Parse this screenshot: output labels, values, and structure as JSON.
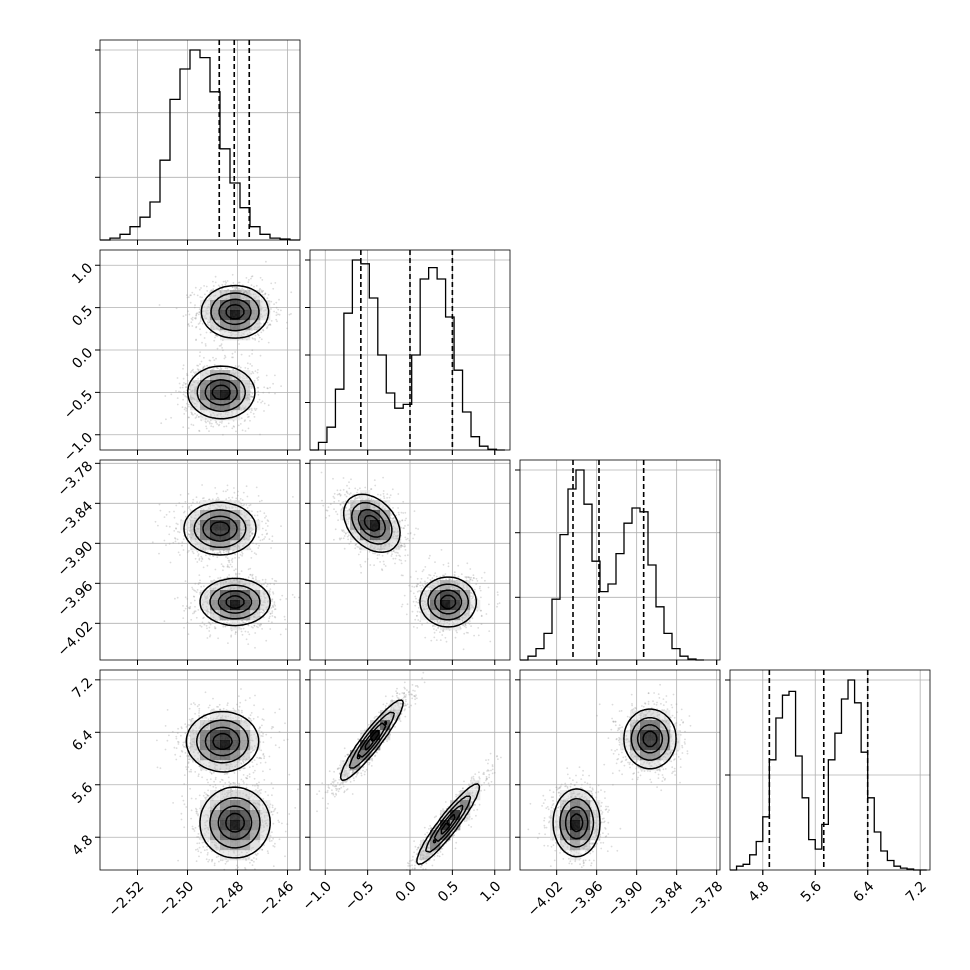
{
  "figure": {
    "background": "#ffffff",
    "grid_color": "#b0b0b0",
    "line_color": "#000000",
    "point_color": "#9a9a9a"
  },
  "chart_data": {
    "type": "corner",
    "dimensions": 4,
    "grid": true,
    "axes": [
      {
        "index": 0,
        "range": [
          -2.535,
          -2.455
        ],
        "ticks": [
          -2.52,
          -2.5,
          -2.48,
          -2.46
        ],
        "tick_labels": [
          "−2.52",
          "−2.50",
          "−2.48",
          "−2.46"
        ]
      },
      {
        "index": 1,
        "range": [
          -1.18,
          1.18
        ],
        "ticks": [
          -1.0,
          -0.5,
          0.0,
          0.5,
          1.0
        ],
        "tick_labels": [
          "−1.0",
          "−0.5",
          "0.0",
          "0.5",
          "1.0"
        ]
      },
      {
        "index": 2,
        "range": [
          -4.075,
          -3.775
        ],
        "ticks": [
          -4.02,
          -3.96,
          -3.9,
          -3.84,
          -3.78
        ],
        "tick_labels": [
          "−4.02",
          "−3.96",
          "−3.90",
          "−3.84",
          "−3.78"
        ]
      },
      {
        "index": 3,
        "range": [
          4.3,
          7.35
        ],
        "ticks": [
          4.8,
          5.6,
          6.4,
          7.2
        ],
        "tick_labels": [
          "4.8",
          "5.6",
          "6.4",
          "7.2"
        ]
      }
    ],
    "marginals": [
      {
        "axis": 0,
        "quantiles": [
          -2.4873,
          -2.4813,
          -2.4753
        ],
        "bin_edges": [
          -2.535,
          -2.531,
          -2.527,
          -2.523,
          -2.519,
          -2.515,
          -2.511,
          -2.507,
          -2.503,
          -2.499,
          -2.495,
          -2.491,
          -2.487,
          -2.483,
          -2.479,
          -2.475,
          -2.471,
          -2.467,
          -2.463,
          -2.459,
          -2.455
        ],
        "counts": [
          0,
          0.01,
          0.03,
          0.07,
          0.12,
          0.2,
          0.42,
          0.74,
          0.9,
          1.0,
          0.96,
          0.78,
          0.48,
          0.3,
          0.17,
          0.07,
          0.03,
          0.01,
          0.005,
          0
        ],
        "y_ticks": [
          0.33,
          0.67,
          1.0
        ]
      },
      {
        "axis": 1,
        "quantiles": [
          -0.58,
          0.0,
          0.5
        ],
        "bin_edges": [
          -1.18,
          -1.08,
          -0.98,
          -0.88,
          -0.78,
          -0.68,
          -0.58,
          -0.48,
          -0.38,
          -0.28,
          -0.18,
          -0.08,
          0.02,
          0.12,
          0.22,
          0.32,
          0.42,
          0.52,
          0.62,
          0.72,
          0.82,
          0.92,
          1.02,
          1.12
        ],
        "counts": [
          0,
          0.04,
          0.12,
          0.32,
          0.72,
          1.0,
          0.98,
          0.8,
          0.5,
          0.3,
          0.22,
          0.24,
          0.5,
          0.9,
          0.96,
          0.9,
          0.7,
          0.42,
          0.2,
          0.07,
          0.02,
          0.004,
          0
        ],
        "y_ticks": [
          0.25,
          0.5,
          0.75,
          1.0
        ]
      },
      {
        "axis": 2,
        "quantiles": [
          -3.9955,
          -3.9565,
          -3.8895
        ],
        "bin_edges": [
          -4.075,
          -4.063,
          -4.051,
          -4.039,
          -4.027,
          -4.015,
          -4.003,
          -3.991,
          -3.979,
          -3.967,
          -3.955,
          -3.943,
          -3.931,
          -3.919,
          -3.907,
          -3.895,
          -3.883,
          -3.871,
          -3.859,
          -3.847,
          -3.835,
          -3.823,
          -3.811,
          -3.799
        ],
        "counts": [
          0,
          0.02,
          0.06,
          0.14,
          0.32,
          0.66,
          0.9,
          1.0,
          0.82,
          0.52,
          0.36,
          0.4,
          0.56,
          0.72,
          0.8,
          0.78,
          0.5,
          0.28,
          0.14,
          0.06,
          0.02,
          0.005,
          0
        ],
        "y_ticks": [
          0.33,
          0.67,
          1.0
        ]
      },
      {
        "axis": 3,
        "quantiles": [
          4.9,
          5.73,
          6.4
        ],
        "bin_edges": [
          4.3,
          4.4,
          4.5,
          4.6,
          4.7,
          4.8,
          4.9,
          5.0,
          5.1,
          5.2,
          5.3,
          5.4,
          5.5,
          5.6,
          5.7,
          5.8,
          5.9,
          6.0,
          6.1,
          6.2,
          6.3,
          6.4,
          6.5,
          6.6,
          6.7,
          6.8,
          6.9,
          7.0,
          7.1,
          7.2,
          7.3
        ],
        "counts": [
          0,
          0.02,
          0.03,
          0.08,
          0.15,
          0.28,
          0.58,
          0.8,
          0.92,
          0.94,
          0.6,
          0.38,
          0.16,
          0.11,
          0.24,
          0.58,
          0.72,
          0.9,
          1.0,
          0.88,
          0.62,
          0.38,
          0.2,
          0.1,
          0.05,
          0.02,
          0.01,
          0.005,
          0,
          0
        ],
        "y_ticks": [
          0.5,
          1.0
        ]
      }
    ],
    "pairs": [
      {
        "row": 1,
        "col": 0,
        "modes": [
          {
            "mean": [
              -2.481,
              0.45
            ],
            "sd": [
              0.0065,
              0.15
            ],
            "rho": 0.0
          },
          {
            "mean": [
              -2.4865,
              -0.5
            ],
            "sd": [
              0.0065,
              0.15
            ],
            "rho": 0.0
          }
        ]
      },
      {
        "row": 2,
        "col": 0,
        "modes": [
          {
            "mean": [
              -2.487,
              -3.878
            ],
            "sd": [
              0.007,
              0.019
            ],
            "rho": 0.0
          },
          {
            "mean": [
              -2.481,
              -3.988
            ],
            "sd": [
              0.0068,
              0.017
            ],
            "rho": 0.0
          }
        ]
      },
      {
        "row": 2,
        "col": 1,
        "modes": [
          {
            "mean": [
              -0.45,
              -3.87
            ],
            "sd": [
              0.16,
              0.021
            ],
            "rho": -0.35
          },
          {
            "mean": [
              0.45,
              -3.988
            ],
            "sd": [
              0.16,
              0.018
            ],
            "rho": 0.0
          }
        ]
      },
      {
        "row": 3,
        "col": 0,
        "modes": [
          {
            "mean": [
              -2.486,
              6.26
            ],
            "sd": [
              0.007,
              0.22
            ],
            "rho": 0.0
          },
          {
            "mean": [
              -2.481,
              5.02
            ],
            "sd": [
              0.0068,
              0.26
            ],
            "rho": 0.0
          }
        ]
      },
      {
        "row": 3,
        "col": 1,
        "modes": [
          {
            "mean": [
              -0.45,
              6.28
            ],
            "sd": [
              0.18,
              0.3
            ],
            "rho": 0.93
          },
          {
            "mean": [
              0.45,
              5.0
            ],
            "sd": [
              0.18,
              0.3
            ],
            "rho": 0.93
          }
        ]
      },
      {
        "row": 3,
        "col": 2,
        "modes": [
          {
            "mean": [
              -3.88,
              6.3
            ],
            "sd": [
              0.019,
              0.22
            ],
            "rho": 0.0
          },
          {
            "mean": [
              -3.99,
              5.02
            ],
            "sd": [
              0.017,
              0.25
            ],
            "rho": 0.0
          }
        ]
      }
    ]
  }
}
